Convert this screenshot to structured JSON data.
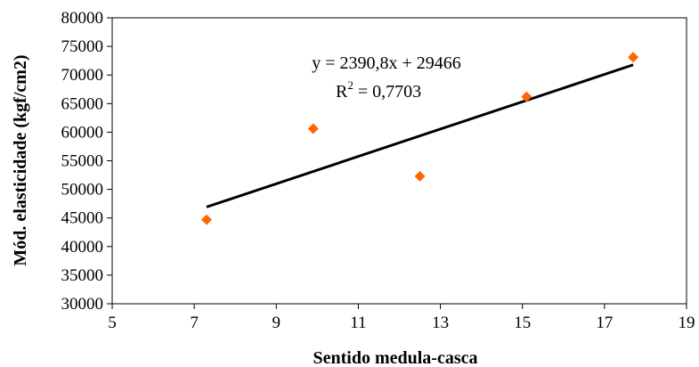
{
  "chart_data": {
    "type": "scatter",
    "xlabel": "Sentido medula-casca",
    "ylabel": "Mód. elasticidade (kgf/cm2)",
    "xlim": [
      5,
      19
    ],
    "ylim": [
      30000,
      80000
    ],
    "x_ticks": [
      5,
      7,
      9,
      11,
      13,
      15,
      17,
      19
    ],
    "y_ticks": [
      30000,
      35000,
      40000,
      45000,
      50000,
      55000,
      60000,
      65000,
      70000,
      75000,
      80000
    ],
    "grid": false,
    "legend": "none",
    "series": [
      {
        "x": [
          7.3,
          9.9,
          12.5,
          15.1,
          17.7
        ],
        "y": [
          44700,
          60600,
          52300,
          66200,
          73100
        ],
        "marker": "diamond",
        "color": "#ff6600"
      }
    ],
    "trendline": {
      "slope": 2390.8,
      "intercept": 29466,
      "x_range": [
        7.3,
        17.7
      ],
      "color": "#000000"
    },
    "annotations": {
      "equation": "y = 2390,8x + 29466",
      "r2_prefix": "R",
      "r2_exponent": "2",
      "r2_value": " = 0,7703"
    }
  }
}
